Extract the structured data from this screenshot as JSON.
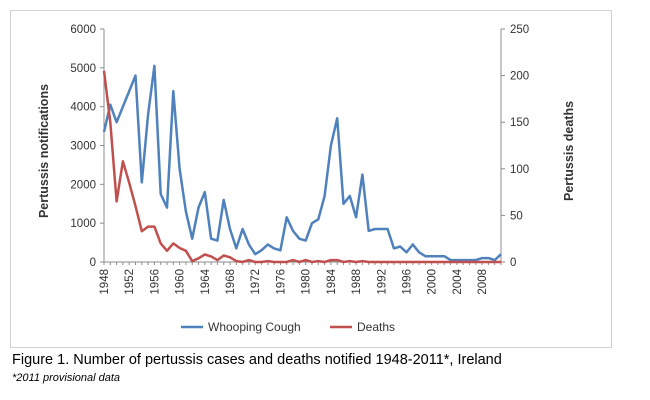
{
  "chart_data": {
    "type": "line",
    "x": [
      1948,
      1949,
      1950,
      1951,
      1952,
      1953,
      1954,
      1955,
      1956,
      1957,
      1958,
      1959,
      1960,
      1961,
      1962,
      1963,
      1964,
      1965,
      1966,
      1967,
      1968,
      1969,
      1970,
      1971,
      1972,
      1973,
      1974,
      1975,
      1976,
      1977,
      1978,
      1979,
      1980,
      1981,
      1982,
      1983,
      1984,
      1985,
      1986,
      1987,
      1988,
      1989,
      1990,
      1991,
      1992,
      1993,
      1994,
      1995,
      1996,
      1997,
      1998,
      1999,
      2000,
      2001,
      2002,
      2003,
      2004,
      2005,
      2006,
      2007,
      2008,
      2009,
      2010,
      2011
    ],
    "series": [
      {
        "name": "Whooping Cough",
        "axis": "left",
        "color": "#4f81bd",
        "values": [
          3350,
          4050,
          3600,
          4000,
          4400,
          4800,
          2050,
          3800,
          5050,
          1750,
          1400,
          4400,
          2400,
          1300,
          600,
          1400,
          1800,
          600,
          550,
          1600,
          850,
          350,
          850,
          450,
          200,
          300,
          450,
          350,
          300,
          1150,
          800,
          600,
          550,
          1000,
          1100,
          1700,
          3000,
          3700,
          1500,
          1700,
          1150,
          2250,
          800,
          850,
          850,
          850,
          350,
          400,
          250,
          450,
          250,
          150,
          150,
          150,
          150,
          50,
          50,
          50,
          50,
          50,
          100,
          100,
          50,
          200
        ]
      },
      {
        "name": "Deaths",
        "axis": "right",
        "color": "#c0504d",
        "values": [
          205,
          150,
          65,
          108,
          85,
          60,
          33,
          38,
          38,
          20,
          12,
          20,
          15,
          12,
          1,
          4,
          8,
          6,
          2,
          7,
          5,
          1,
          0,
          2,
          0,
          0,
          1,
          0,
          0,
          0,
          2,
          0,
          2,
          0,
          1,
          0,
          2,
          2,
          0,
          1,
          0,
          1,
          0,
          0,
          0,
          0,
          0,
          0,
          0,
          0,
          0,
          0,
          0,
          0,
          0,
          0,
          0,
          0,
          0,
          0,
          0,
          0,
          0,
          0
        ]
      }
    ],
    "y_left": {
      "label": "Pertussis notifications",
      "ylim": [
        0,
        6000
      ],
      "ticks": [
        0,
        1000,
        2000,
        3000,
        4000,
        5000,
        6000
      ]
    },
    "y_right": {
      "label": "Pertussis deaths",
      "ylim": [
        0,
        250
      ],
      "ticks": [
        0,
        50,
        100,
        150,
        200,
        250
      ]
    },
    "x_ticks": [
      1948,
      1952,
      1956,
      1960,
      1964,
      1968,
      1972,
      1976,
      1980,
      1984,
      1988,
      1992,
      1996,
      2000,
      2004,
      2008
    ],
    "grid": false,
    "legend_position": "bottom"
  },
  "caption": "Figure 1. Number of pertussis cases and deaths notified 1948-2011*, Ireland",
  "footnote": "*2011 provisional data"
}
